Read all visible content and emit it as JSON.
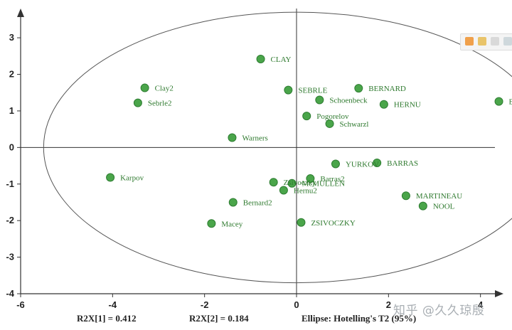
{
  "chart_data": {
    "type": "scatter",
    "xlim": [
      -6,
      4.5
    ],
    "ylim": [
      -4,
      3.8
    ],
    "x_ticks": [
      "-6",
      "-4",
      "-2",
      "0",
      "2",
      "4"
    ],
    "y_ticks": [
      "3",
      "2",
      "1",
      "0",
      "-1",
      "-2",
      "-3",
      "-4"
    ],
    "points": [
      {
        "label": "CLAY",
        "x": -0.78,
        "y": 2.42
      },
      {
        "label": "Clay2",
        "x": -3.3,
        "y": 1.63
      },
      {
        "label": "Sebrle2",
        "x": -3.45,
        "y": 1.22
      },
      {
        "label": "SEBRLE",
        "x": -0.18,
        "y": 1.57
      },
      {
        "label": "BERNARD",
        "x": 1.35,
        "y": 1.62
      },
      {
        "label": "Schoenbeck",
        "x": 0.5,
        "y": 1.3
      },
      {
        "label": "HERNU",
        "x": 1.9,
        "y": 1.18
      },
      {
        "label": "BOURGUIGNO",
        "x": 4.4,
        "y": 1.26
      },
      {
        "label": "Pogorelov",
        "x": 0.22,
        "y": 0.86
      },
      {
        "label": "Schwarzl",
        "x": 0.72,
        "y": 0.65
      },
      {
        "label": "Warners",
        "x": -1.4,
        "y": 0.27
      },
      {
        "label": "YURKOV",
        "x": 0.85,
        "y": -0.45
      },
      {
        "label": "BARRAS",
        "x": 1.75,
        "y": -0.42
      },
      {
        "label": "Karpov",
        "x": -4.05,
        "y": -0.82
      },
      {
        "label": "Barras2",
        "x": 0.3,
        "y": -0.85
      },
      {
        "label": "Zsivoczky",
        "x": -0.5,
        "y": -0.95
      },
      {
        "label": "McMULLEN",
        "x": -0.1,
        "y": -0.98
      },
      {
        "label": "Hernu2",
        "x": -0.28,
        "y": -1.17
      },
      {
        "label": "MARTINEAU",
        "x": 2.38,
        "y": -1.32
      },
      {
        "label": "NOOL",
        "x": 2.75,
        "y": -1.6
      },
      {
        "label": "Bernard2",
        "x": -1.38,
        "y": -1.5
      },
      {
        "label": "Macey",
        "x": -1.85,
        "y": -2.08
      },
      {
        "label": "ZSIVOCZKY",
        "x": 0.1,
        "y": -2.05
      }
    ],
    "ellipse": {
      "cx": 0,
      "cy": 0,
      "rx": 5.5,
      "ry": 3.7
    },
    "marker_color": "#4aa54a",
    "marker_stroke": "#2e7d32",
    "label_color": "#2f7a2f",
    "footer": {
      "r2x1": "R2X[1] = 0.412",
      "r2x2": "R2X[2] = 0.184",
      "ellipse_note": "Ellipse: Hotelling's T2 (95%)"
    }
  },
  "toolbar": {
    "icons": [
      "zoom-icon",
      "copy-icon",
      "select-icon",
      "search-icon"
    ]
  },
  "watermark": "知乎 @久久琼殷"
}
